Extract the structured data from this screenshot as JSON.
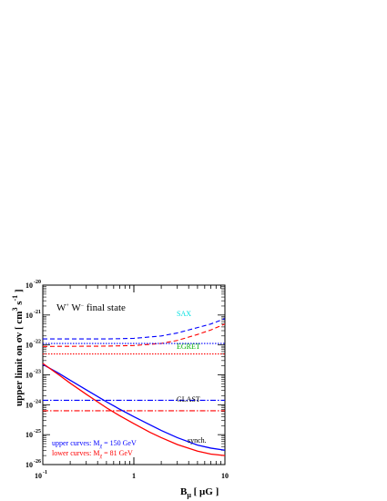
{
  "chart_data": {
    "type": "line",
    "title": "W⁺ W⁻ final state",
    "title_parts": {
      "base1": "W",
      "sup1": "+",
      "base2": " W",
      "sup2": "−",
      "rest": " final state"
    },
    "xlabel": "Bμ [ μG ]",
    "xlabel_parts": {
      "B": "B",
      "sub": "μ",
      "rest": " [ μG ]"
    },
    "ylabel": "upper limit on σv [ cm³ s⁻¹ ]",
    "ylabel_parts": {
      "main": "upper limit on σv [ cm",
      "sup1": "3",
      "mid": " s",
      "sup2": "-1",
      "end": " ]"
    },
    "xscale": "log",
    "xlim": [
      0.1,
      10
    ],
    "ylim_log10": [
      -26,
      -20
    ],
    "x_ticks": [
      {
        "value": 0.1,
        "base": "10",
        "exp": "-1"
      },
      {
        "value": 1,
        "label": "1"
      },
      {
        "value": 10,
        "label": "10"
      }
    ],
    "y_ticks": [
      {
        "value": -20,
        "base": "10",
        "exp": "-20"
      },
      {
        "value": -21,
        "base": "10",
        "exp": "-21"
      },
      {
        "value": -22,
        "base": "10",
        "exp": "-22"
      },
      {
        "value": -23,
        "base": "10",
        "exp": "-23"
      },
      {
        "value": -24,
        "base": "10",
        "exp": "-24"
      },
      {
        "value": -25,
        "base": "10",
        "exp": "-25"
      },
      {
        "value": -26,
        "base": "10",
        "exp": "-26"
      }
    ],
    "series": [
      {
        "name": "SAX",
        "color": "#0000ff",
        "style": "dashed",
        "x": [
          0.1,
          0.5,
          1,
          2,
          3,
          5,
          7,
          10
        ],
        "log10_y": [
          -21.8,
          -21.8,
          -21.78,
          -21.7,
          -21.6,
          -21.42,
          -21.3,
          -21.12
        ]
      },
      {
        "name": "SAX",
        "color": "#ff0000",
        "style": "dashed",
        "x": [
          0.1,
          0.5,
          1,
          2,
          3,
          5,
          7,
          10
        ],
        "log10_y": [
          -22.05,
          -22.04,
          -22.02,
          -21.95,
          -21.85,
          -21.65,
          -21.5,
          -21.3
        ]
      },
      {
        "name": "EGRET",
        "color": "#0000ff",
        "style": "dotted",
        "x": [
          0.1,
          10
        ],
        "log10_y": [
          -21.95,
          -21.95
        ]
      },
      {
        "name": "EGRET",
        "color": "#ff0000",
        "style": "dotted",
        "x": [
          0.1,
          10
        ],
        "log10_y": [
          -22.3,
          -22.3
        ]
      },
      {
        "name": "GLAST",
        "color": "#0000ff",
        "style": "dashdot",
        "x": [
          0.1,
          10
        ],
        "log10_y": [
          -23.85,
          -23.85
        ]
      },
      {
        "name": "GLAST",
        "color": "#ff0000",
        "style": "dashdot",
        "x": [
          0.1,
          10
        ],
        "log10_y": [
          -24.2,
          -24.2
        ]
      },
      {
        "name": "synch.",
        "color": "#0000ff",
        "style": "solid",
        "x": [
          0.1,
          0.15,
          0.2,
          0.3,
          0.5,
          0.7,
          1,
          1.5,
          2,
          3,
          5,
          7,
          10
        ],
        "log10_y": [
          -22.65,
          -22.95,
          -23.18,
          -23.5,
          -23.9,
          -24.15,
          -24.4,
          -24.67,
          -24.86,
          -25.1,
          -25.35,
          -25.45,
          -25.52
        ]
      },
      {
        "name": "synch.",
        "color": "#ff0000",
        "style": "solid",
        "x": [
          0.1,
          0.15,
          0.2,
          0.3,
          0.5,
          0.7,
          1,
          1.5,
          2,
          3,
          5,
          7,
          10
        ],
        "log10_y": [
          -22.62,
          -23.0,
          -23.28,
          -23.65,
          -24.1,
          -24.37,
          -24.63,
          -24.92,
          -25.1,
          -25.33,
          -25.55,
          -25.65,
          -25.7
        ]
      }
    ],
    "annotations": [
      {
        "key": "sax",
        "text": "SAX",
        "color": "#00e0e0"
      },
      {
        "key": "egret",
        "text": "EGRET",
        "color": "#00b000"
      },
      {
        "key": "glast",
        "text": "GLAST",
        "color": "#000000"
      },
      {
        "key": "synch",
        "text": "synch.",
        "color": "#000000"
      }
    ],
    "legend": [
      {
        "color": "#0000ff",
        "pre": "upper curves: M",
        "sub": "χ",
        "post": " = 150 GeV"
      },
      {
        "color": "#ff0000",
        "pre": "lower curves: M",
        "sub": "χ",
        "post": " = 81 GeV"
      }
    ],
    "grid": false
  }
}
